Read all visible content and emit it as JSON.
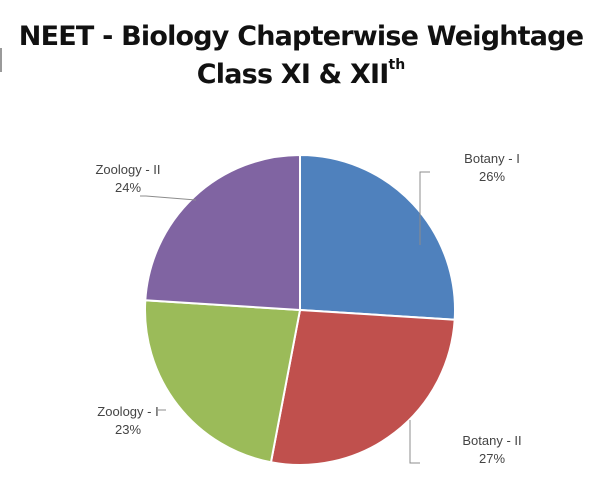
{
  "title": {
    "line1": "NEET - Biology Chapterwise Weightage",
    "line2_main": "Class XI & XII",
    "line2_sup": "th"
  },
  "chart_data": {
    "type": "pie",
    "title": "NEET - Biology Chapterwise Weightage Class XI & XIIth",
    "categories": [
      "Botany - I",
      "Botany - II",
      "Zoology - I",
      "Zoology - II"
    ],
    "values": [
      26,
      27,
      23,
      24
    ],
    "value_labels": [
      "26%",
      "27%",
      "23%",
      "24%"
    ],
    "colors": [
      "#4f81bd",
      "#c0504d",
      "#9bbb59",
      "#8064a2"
    ],
    "start_angle": "12 o'clock",
    "direction": "clockwise",
    "legend": "none",
    "label_placement": "outside with leader lines"
  }
}
